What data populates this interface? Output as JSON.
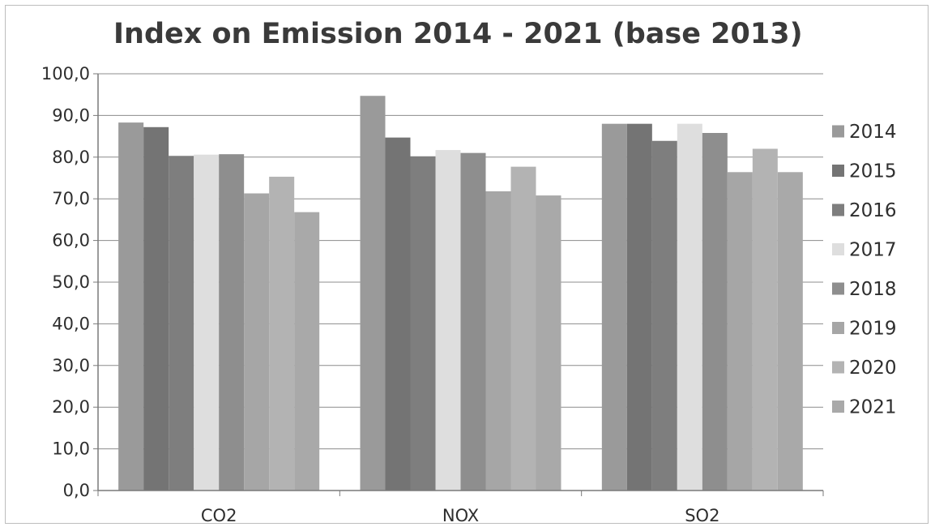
{
  "chart_data": {
    "type": "bar",
    "title": "Index on Emission 2014 - 2021 (base 2013)",
    "xlabel": "",
    "ylabel": "",
    "categories": [
      "CO2",
      "NOX",
      "SO2"
    ],
    "yticks": [
      "0,0",
      "10,0",
      "20,0",
      "30,0",
      "40,0",
      "50,0",
      "60,0",
      "70,0",
      "80,0",
      "90,0",
      "100,0"
    ],
    "ylim": [
      0,
      100
    ],
    "grid": true,
    "legend_position": "right",
    "series": [
      {
        "name": "2014",
        "values": [
          88.3,
          94.7,
          88.0
        ],
        "color": "#9a9a9a"
      },
      {
        "name": "2015",
        "values": [
          87.2,
          84.7,
          88.0
        ],
        "color": "#747474"
      },
      {
        "name": "2016",
        "values": [
          80.3,
          80.2,
          83.9
        ],
        "color": "#7e7e7e"
      },
      {
        "name": "2017",
        "values": [
          80.6,
          81.7,
          88.0
        ],
        "color": "#dedede"
      },
      {
        "name": "2018",
        "values": [
          80.7,
          81.0,
          85.8
        ],
        "color": "#8e8e8e"
      },
      {
        "name": "2019",
        "values": [
          71.3,
          71.8,
          76.4
        ],
        "color": "#a6a6a6"
      },
      {
        "name": "2020",
        "values": [
          75.3,
          77.7,
          82.0
        ],
        "color": "#b3b3b3"
      },
      {
        "name": "2021",
        "values": [
          66.8,
          70.8,
          76.4
        ],
        "color": "#a9a9a9"
      }
    ]
  }
}
